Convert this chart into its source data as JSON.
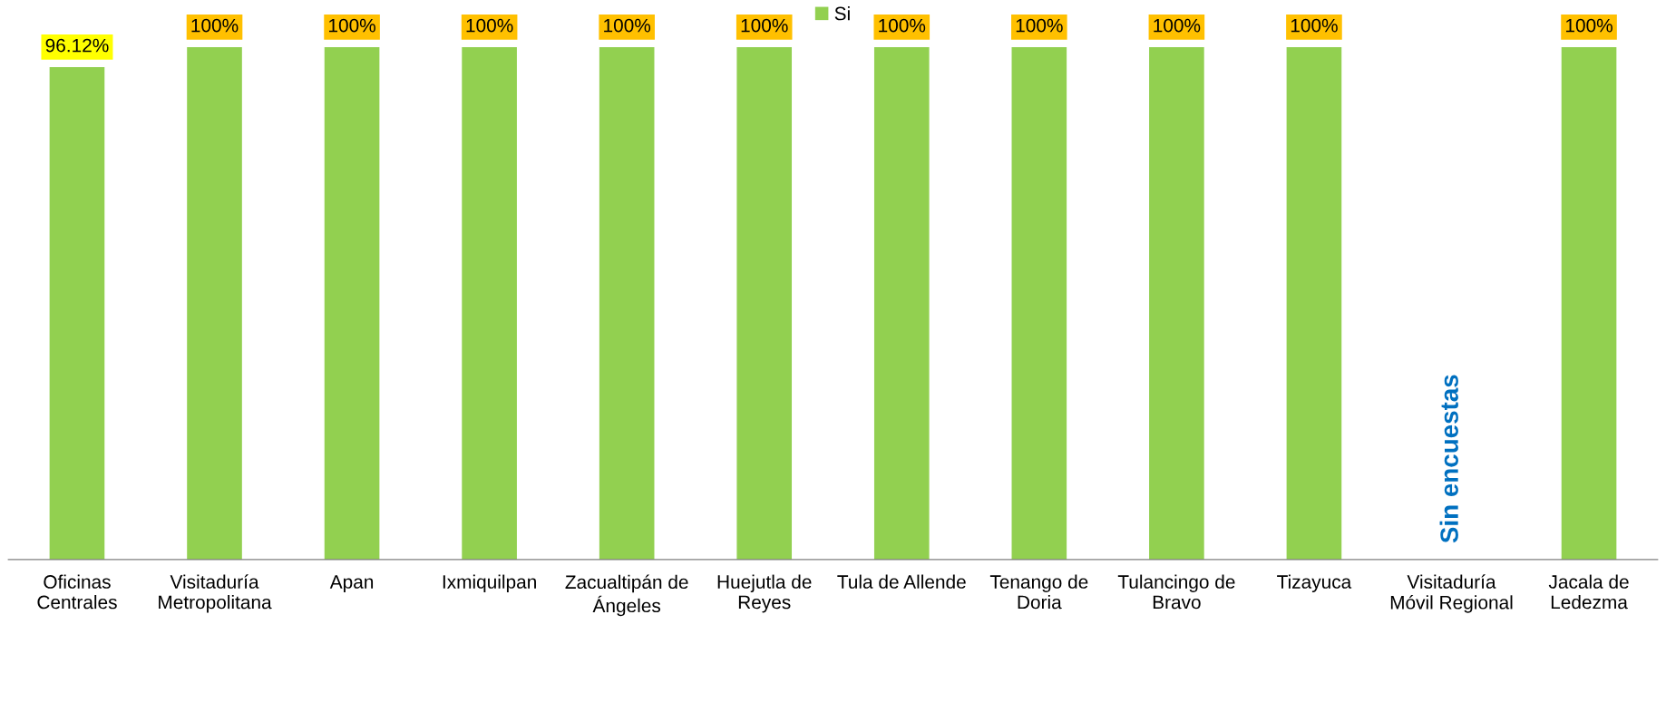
{
  "chart_data": {
    "type": "bar",
    "categories": [
      "Oficinas\nCentrales",
      "Visitaduría\nMetropolitana",
      "Apan",
      "Ixmiquilpan",
      "Zacualtipán de\nÁngeles",
      "Huejutla de\nReyes",
      "Tula de Allende",
      "Tenango de\nDoria",
      "Tulancingo de\nBravo",
      "Tizayuca",
      "Visitaduría\nMóvil Regional",
      "Jacala de\nLedezma"
    ],
    "series": [
      {
        "name": "Si",
        "color": "#92d050",
        "values": [
          96.12,
          100,
          100,
          100,
          100,
          100,
          100,
          100,
          100,
          100,
          null,
          100
        ],
        "value_labels": [
          "96.12%",
          "100%",
          "100%",
          "100%",
          "100%",
          "100%",
          "100%",
          "100%",
          "100%",
          "100%",
          null,
          "100%"
        ]
      }
    ],
    "annotations": [
      "Sin encuestas"
    ],
    "legend": "top",
    "grid": false
  }
}
